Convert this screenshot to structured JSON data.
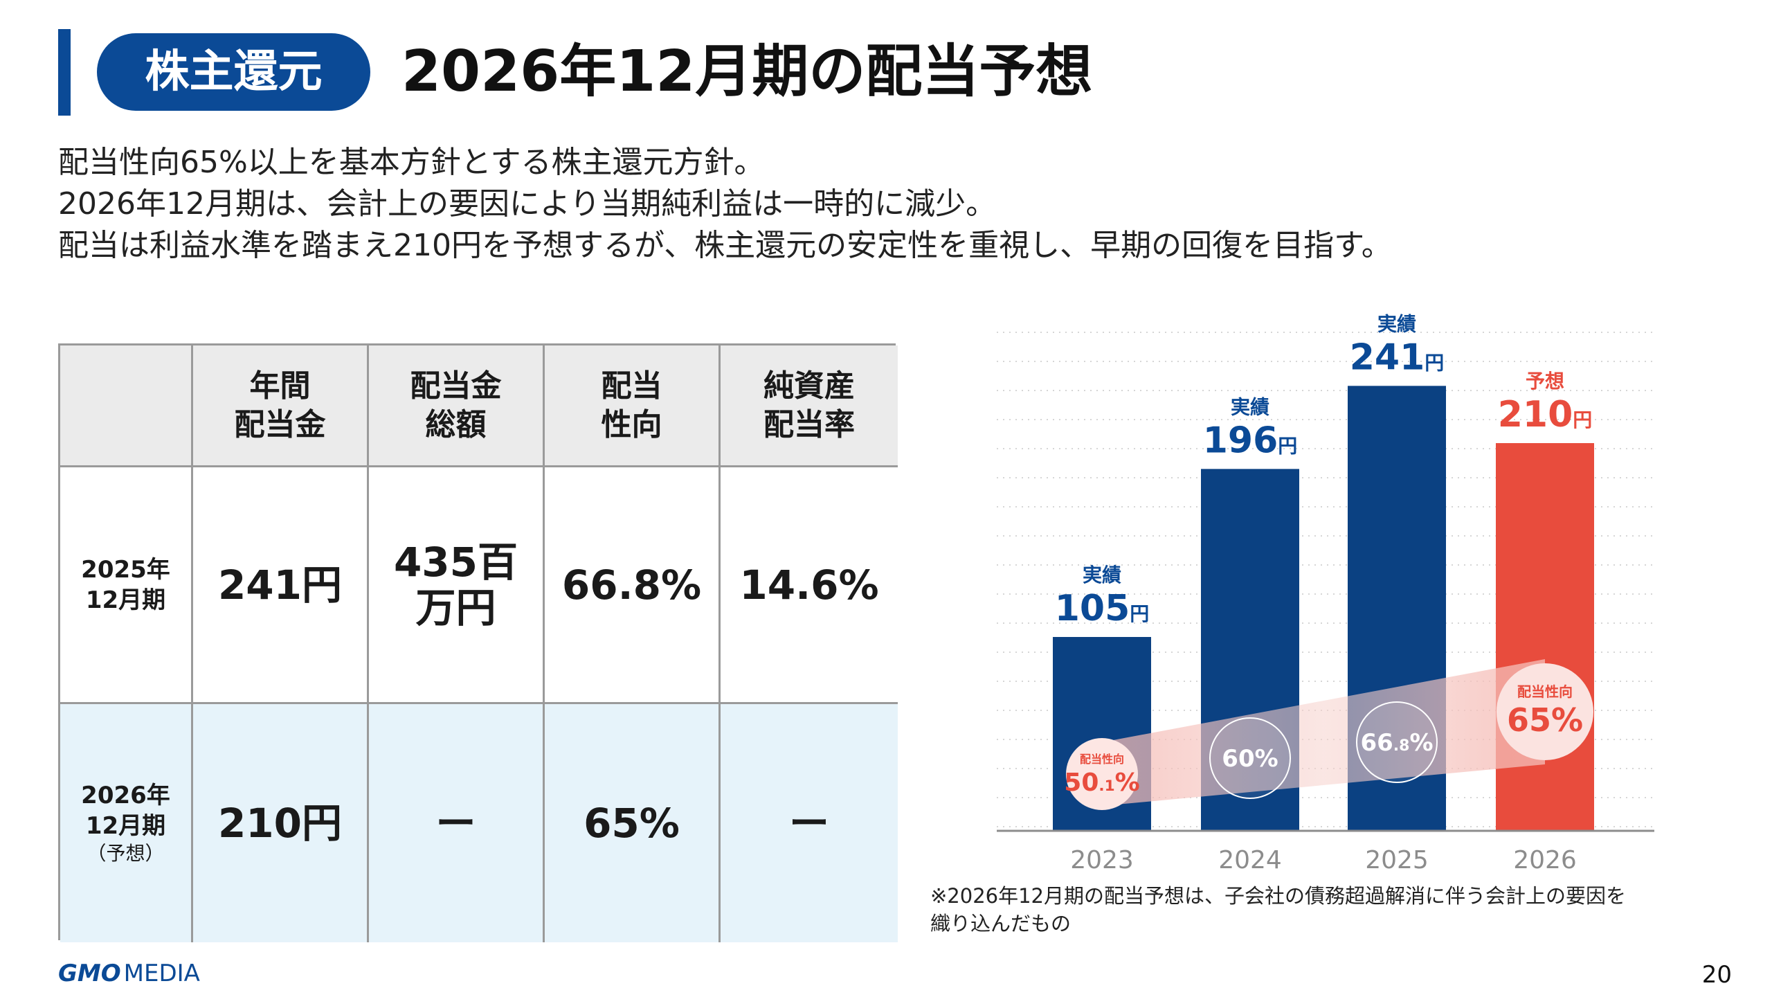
{
  "header": {
    "tag": "株主還元",
    "title": "2026年12月期の配当予想"
  },
  "lead": [
    "配当性向65%以上を基本方針とする株主還元方針。",
    "2026年12月期は、会計上の要因により当期純利益は一時的に減少。",
    "配当は利益水準を踏まえ210円を予想するが、株主還元の安定性を重視し、早期の回復を目指す。"
  ],
  "table": {
    "columns": [
      {
        "line1": "年間",
        "line2": "配当金"
      },
      {
        "line1": "配当金",
        "line2": "総額"
      },
      {
        "line1": "配当",
        "line2": "性向"
      },
      {
        "line1": "純資産",
        "line2": "配当率"
      }
    ],
    "rows": [
      {
        "label1": "2025年",
        "label2": "12月期",
        "label3": "",
        "values": [
          [
            "241円"
          ],
          [
            "435百",
            "万円"
          ],
          [
            "66.8%"
          ],
          [
            "14.6%"
          ]
        ]
      },
      {
        "label1": "2026年",
        "label2": "12月期",
        "label3": "（予想）",
        "values": [
          [
            "210円"
          ],
          [
            "ー"
          ],
          [
            "65%"
          ],
          [
            "ー"
          ]
        ]
      }
    ]
  },
  "chart_data": {
    "type": "bar",
    "categories": [
      "2023",
      "2024",
      "2025",
      "2026"
    ],
    "values": [
      105,
      196,
      241,
      210
    ],
    "unit": "円",
    "status_labels": [
      "実績",
      "実績",
      "実績",
      "予想"
    ],
    "payout_ratio_label": "配当性向",
    "payout_ratios": [
      {
        "num": "50",
        "dec": ".1",
        "pct": "%",
        "show_label": true
      },
      {
        "num": "60",
        "dec": "",
        "pct": "%",
        "show_label": false
      },
      {
        "num": "66",
        "dec": ".8",
        "pct": "%",
        "show_label": false
      },
      {
        "num": "65",
        "dec": "",
        "pct": "%",
        "show_label": true
      }
    ],
    "ylim": [
      0,
      270
    ],
    "grid": true,
    "colors": {
      "actual": "#0b4182",
      "forecast": "#e84c3d",
      "label_actual": "#0b4a96",
      "label_forecast": "#e84c3d",
      "axis_text": "#8c8c8c"
    }
  },
  "note": [
    "※2026年12月期の配当予想は、子会社の債務超過解消に伴う会計上の要因を",
    "織り込んだもの"
  ],
  "footer": {
    "logo_gmo": "GMO",
    "logo_media": "MEDIA",
    "page_number": "20"
  }
}
